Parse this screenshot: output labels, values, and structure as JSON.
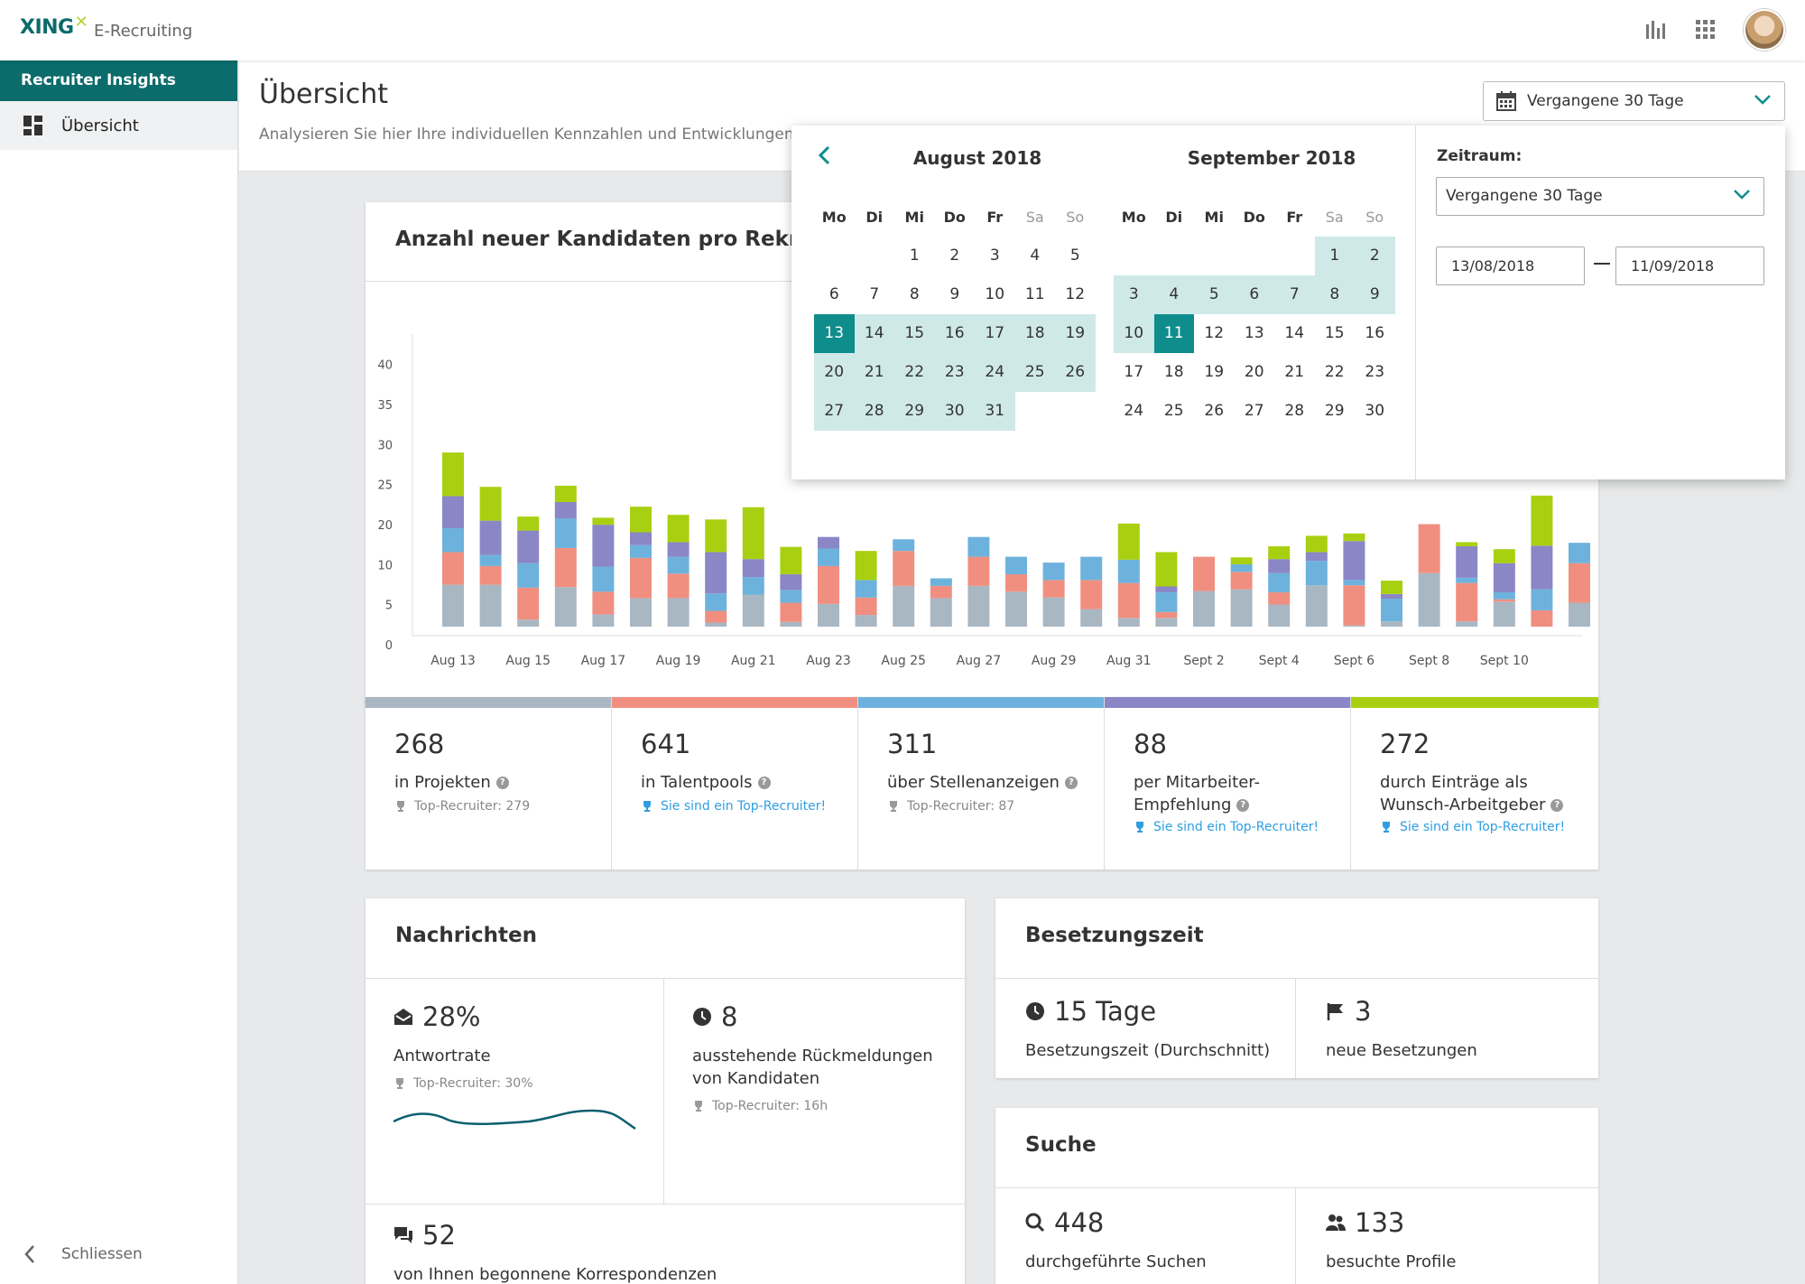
{
  "app": {
    "brand": "XING",
    "product": "E-Recruiting"
  },
  "sidebar": {
    "section_title": "Recruiter Insights",
    "items": [
      {
        "label": "Übersicht",
        "icon": "dashboard-icon",
        "active": true
      }
    ],
    "close_label": "Schliessen"
  },
  "header": {
    "title": "Übersicht",
    "description": "Analysieren Sie hier Ihre individuellen Kennzahlen und Entwicklungen in"
  },
  "date_filter": {
    "label": "Vergangene 30 Tage"
  },
  "calendar": {
    "months": [
      {
        "title": "August 2018"
      },
      {
        "title": "September 2018"
      }
    ],
    "weekdays": [
      "Mo",
      "Di",
      "Mi",
      "Do",
      "Fr",
      "Sa",
      "So"
    ],
    "zeitraum_label": "Zeitraum:",
    "zeitraum_value": "Vergangene 30 Tage",
    "start_date": "13/08/2018",
    "end_date": "11/09/2018"
  },
  "chart_card": {
    "title": "Anzahl neuer Kandidaten pro Rekrutier"
  },
  "chart_data": {
    "type": "bar",
    "stacked": true,
    "ylim": [
      0,
      40
    ],
    "yticks": [
      0,
      5,
      10,
      20,
      25,
      30,
      35,
      40
    ],
    "xticks": [
      "Aug 13",
      "Aug 15",
      "Aug 17",
      "Aug 19",
      "Aug 21",
      "Aug 23",
      "Aug 25",
      "Aug 27",
      "Aug 29",
      "Aug 31",
      "Sept 2",
      "Sept 4",
      "Sept 6",
      "Sept 8",
      "Sept 10"
    ],
    "series_colors": [
      "#a9b7c3",
      "#f08f80",
      "#6db2dd",
      "#8b86c6",
      "#a9d010"
    ],
    "values": [
      [
        7.2,
        5.6,
        4.1,
        5.5,
        7.5
      ],
      [
        7.2,
        3.2,
        1.9,
        5.9,
        5.8
      ],
      [
        1.2,
        5.5,
        4.2,
        5.6,
        2.4
      ],
      [
        6.8,
        6.7,
        5.1,
        2.8,
        2.8
      ],
      [
        2.1,
        3.9,
        4.3,
        7.2,
        1.2
      ],
      [
        4.9,
        6.9,
        2.2,
        2.2,
        4.4
      ],
      [
        4.9,
        4.2,
        2.9,
        2.5,
        4.7
      ],
      [
        0.7,
        2.0,
        3.0,
        7.1,
        5.6
      ],
      [
        5.5,
        0,
        3.0,
        3.1,
        8.9
      ],
      [
        0.8,
        3.3,
        2.2,
        2.7,
        4.7
      ],
      [
        3.9,
        6.5,
        3.0,
        2.0,
        0
      ],
      [
        2.0,
        3.0,
        3.0,
        0,
        5.0
      ],
      [
        7.0,
        6.0,
        2.0,
        0,
        0
      ],
      [
        4.9,
        2.1,
        1.3,
        0,
        0
      ],
      [
        7.0,
        5.0,
        3.4,
        0,
        0
      ],
      [
        6.0,
        3.0,
        3.0,
        0,
        0
      ],
      [
        5.0,
        3.0,
        3.0,
        0,
        0
      ],
      [
        3.0,
        5.0,
        4.0,
        0,
        0
      ],
      [
        1.5,
        6.0,
        4.0,
        0,
        6.2
      ],
      [
        1.5,
        1.0,
        3.4,
        1.0,
        5.9
      ],
      [
        6.1,
        5.9,
        0,
        0,
        0
      ],
      [
        6.4,
        3.0,
        1.3,
        0,
        1.2
      ],
      [
        3.8,
        2.1,
        3.3,
        2.4,
        2.2
      ],
      [
        7.1,
        0,
        4.2,
        1.5,
        2.8
      ],
      [
        0.2,
        6.9,
        0.9,
        6.7,
        1.3
      ],
      [
        0.9,
        0,
        3.9,
        0.8,
        2.3
      ],
      [
        9.2,
        8.4,
        0,
        0,
        0
      ],
      [
        0.9,
        6.6,
        0.9,
        5.4,
        0.7
      ],
      [
        4.3,
        0.4,
        1.2,
        5.0,
        2.4
      ],
      [
        0,
        2.8,
        3.6,
        7.5,
        8.6
      ],
      [
        4.1,
        6.8,
        3.5,
        0,
        0
      ]
    ]
  },
  "stats": [
    {
      "value": "268",
      "label": "in Projekten",
      "sub": "Top-Recruiter: 279",
      "top": false,
      "color": "#a9b7c3"
    },
    {
      "value": "641",
      "label": "in Talentpools",
      "sub": "Sie sind ein Top-Recruiter!",
      "top": true,
      "color": "#f08f80"
    },
    {
      "value": "311",
      "label": "über Stellenanzeigen",
      "sub": "Top-Recruiter: 87",
      "top": false,
      "color": "#6db2dd"
    },
    {
      "value": "88",
      "label": "per Mitarbeiter-Empfehlung",
      "sub": "Sie sind ein Top-Recruiter!",
      "top": true,
      "color": "#8b86c6"
    },
    {
      "value": "272",
      "label": "durch Einträge als Wunsch-Arbeitgeber",
      "sub": "Sie sind ein Top-Recruiter!",
      "top": true,
      "color": "#a9d010"
    }
  ],
  "messages": {
    "title": "Nachrichten",
    "reply_rate": {
      "value": "28%",
      "label": "Antwortrate",
      "sub": "Top-Recruiter: 30%"
    },
    "pending": {
      "value": "8",
      "label": "ausstehende Rückmeldungen von Kandidaten",
      "sub": "Top-Recruiter: 16h"
    },
    "started": {
      "value": "52",
      "label": "von Ihnen begonnene Korrespondenzen"
    }
  },
  "fill_time": {
    "title": "Besetzungszeit",
    "avg": {
      "value": "15 Tage",
      "label": "Besetzungszeit (Durchschnitt)"
    },
    "new": {
      "value": "3",
      "label": "neue Besetzungen"
    }
  },
  "search": {
    "title": "Suche",
    "searches": {
      "value": "448",
      "label": "durchgeführte Suchen"
    },
    "profiles": {
      "value": "133",
      "label": "besuchte Profile"
    }
  }
}
